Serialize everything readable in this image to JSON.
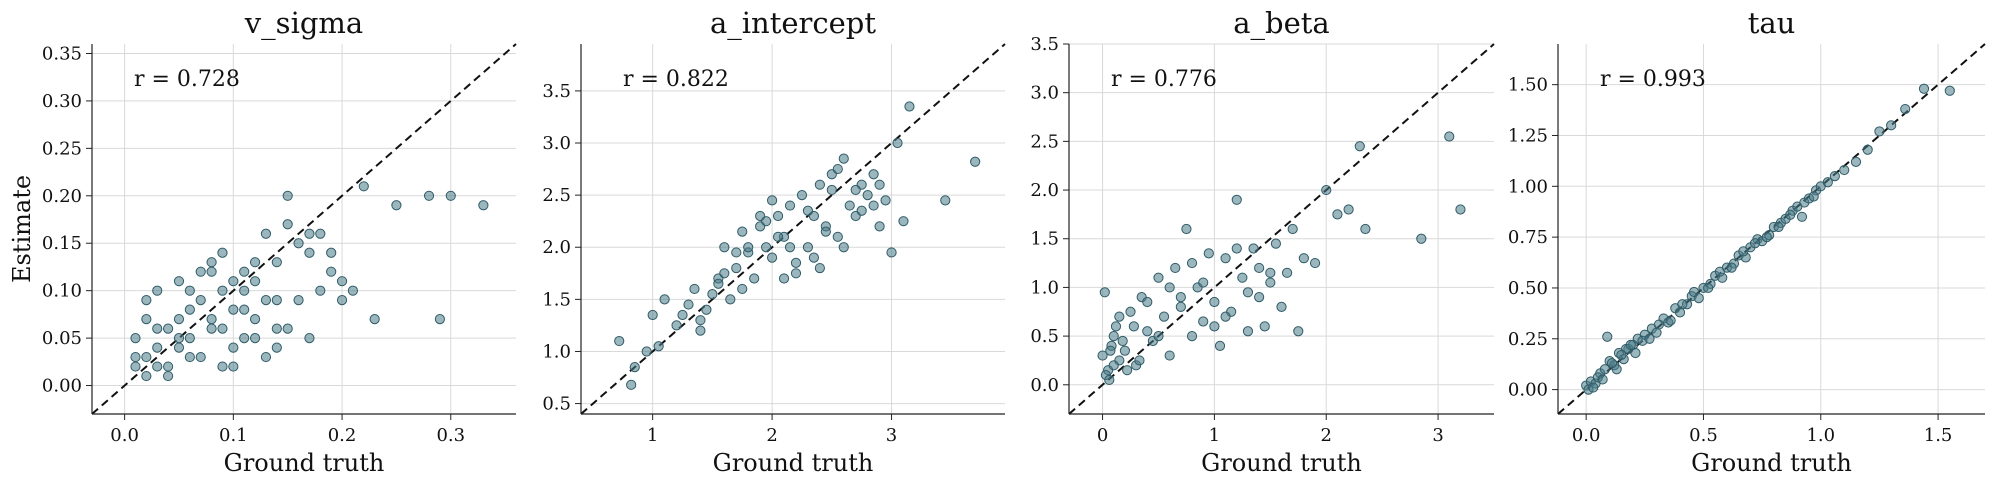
{
  "colors": {
    "point": "#4a7a87",
    "point_edge": "#2f5c68"
  },
  "chart_data": [
    {
      "type": "scatter",
      "title": "v_sigma",
      "xlabel": "Ground truth",
      "ylabel": "Estimate",
      "annotation": "r = 0.728",
      "xlim": [
        -0.03,
        0.36
      ],
      "ylim": [
        -0.03,
        0.36
      ],
      "xticks": [
        0.0,
        0.1,
        0.2,
        0.3
      ],
      "xtick_labels": [
        "0.0",
        "0.1",
        "0.2",
        "0.3"
      ],
      "yticks": [
        0.0,
        0.05,
        0.1,
        0.15,
        0.2,
        0.25,
        0.3,
        0.35
      ],
      "ytick_labels": [
        "0.00",
        "0.05",
        "0.10",
        "0.15",
        "0.20",
        "0.25",
        "0.30",
        "0.35"
      ],
      "grid": true,
      "identity_line": true,
      "x": [
        0.02,
        0.03,
        0.01,
        0.05,
        0.04,
        0.06,
        0.03,
        0.08,
        0.02,
        0.07,
        0.1,
        0.12,
        0.09,
        0.11,
        0.13,
        0.06,
        0.05,
        0.15,
        0.14,
        0.08,
        0.1,
        0.12,
        0.17,
        0.16,
        0.19,
        0.18,
        0.22,
        0.25,
        0.28,
        0.3,
        0.33,
        0.29,
        0.23,
        0.2,
        0.14,
        0.11,
        0.09,
        0.04,
        0.03,
        0.01,
        0.02,
        0.06,
        0.07,
        0.05,
        0.08,
        0.13,
        0.15,
        0.12,
        0.1,
        0.17,
        0.19,
        0.21,
        0.16,
        0.11,
        0.07,
        0.09,
        0.04,
        0.03,
        0.02,
        0.01,
        0.05,
        0.06,
        0.08,
        0.1,
        0.12,
        0.14,
        0.13,
        0.11,
        0.09,
        0.18,
        0.2,
        0.15,
        0.17,
        0.14
      ],
      "y": [
        0.03,
        0.02,
        0.05,
        0.04,
        0.06,
        0.08,
        0.1,
        0.07,
        0.09,
        0.12,
        0.11,
        0.13,
        0.14,
        0.1,
        0.16,
        0.03,
        0.05,
        0.2,
        0.09,
        0.06,
        0.02,
        0.05,
        0.14,
        0.15,
        0.12,
        0.1,
        0.21,
        0.19,
        0.2,
        0.2,
        0.19,
        0.07,
        0.07,
        0.11,
        0.04,
        0.08,
        0.1,
        0.01,
        0.04,
        0.02,
        0.07,
        0.05,
        0.09,
        0.11,
        0.12,
        0.09,
        0.17,
        0.07,
        0.04,
        0.16,
        0.14,
        0.1,
        0.09,
        0.05,
        0.03,
        0.06,
        0.02,
        0.06,
        0.01,
        0.03,
        0.07,
        0.1,
        0.13,
        0.08,
        0.11,
        0.13,
        0.03,
        0.12,
        0.02,
        0.16,
        0.09,
        0.06,
        0.05,
        0.06
      ]
    },
    {
      "type": "scatter",
      "title": "a_intercept",
      "xlabel": "Ground truth",
      "ylabel": "",
      "annotation": "r = 0.822",
      "xlim": [
        0.4,
        3.95
      ],
      "ylim": [
        0.4,
        3.95
      ],
      "xticks": [
        1,
        2,
        3
      ],
      "xtick_labels": [
        "1",
        "2",
        "3"
      ],
      "yticks": [
        0.5,
        1.0,
        1.5,
        2.0,
        2.5,
        3.0,
        3.5
      ],
      "ytick_labels": [
        "0.5",
        "1.0",
        "1.5",
        "2.0",
        "2.5",
        "3.0",
        "3.5"
      ],
      "grid": true,
      "identity_line": true,
      "x": [
        0.72,
        0.82,
        0.85,
        0.95,
        1.0,
        1.05,
        1.1,
        1.2,
        1.3,
        1.35,
        1.4,
        1.5,
        1.55,
        1.6,
        1.65,
        1.7,
        1.75,
        1.8,
        1.85,
        1.9,
        1.95,
        2.0,
        2.05,
        2.1,
        2.15,
        2.2,
        2.25,
        2.3,
        2.35,
        2.4,
        2.45,
        2.5,
        2.55,
        2.6,
        2.65,
        2.7,
        2.75,
        2.8,
        2.85,
        2.9,
        2.95,
        3.0,
        3.05,
        3.1,
        3.15,
        3.45,
        3.7,
        1.45,
        1.6,
        1.75,
        1.9,
        2.05,
        2.2,
        2.35,
        2.5,
        2.6,
        1.8,
        1.95,
        2.1,
        2.3,
        2.45,
        2.7,
        2.85,
        1.55,
        1.7,
        2.0,
        2.15,
        2.4,
        2.55,
        1.25,
        1.4,
        2.75,
        2.9
      ],
      "y": [
        1.1,
        0.68,
        0.85,
        1.0,
        1.35,
        1.05,
        1.5,
        1.25,
        1.45,
        1.6,
        1.3,
        1.55,
        1.7,
        2.0,
        1.5,
        1.8,
        2.15,
        1.95,
        1.7,
        2.2,
        2.0,
        1.9,
        2.3,
        2.1,
        2.4,
        1.75,
        2.5,
        2.0,
        2.3,
        2.6,
        2.2,
        2.7,
        2.1,
        2.85,
        2.4,
        2.3,
        2.6,
        2.5,
        2.7,
        2.2,
        2.45,
        1.95,
        3.0,
        2.25,
        3.35,
        2.45,
        2.82,
        1.4,
        1.75,
        1.6,
        2.3,
        2.1,
        1.85,
        1.9,
        2.55,
        2.0,
        2.0,
        2.25,
        1.7,
        2.35,
        2.15,
        2.55,
        2.4,
        1.65,
        1.95,
        2.45,
        2.0,
        1.8,
        2.75,
        1.35,
        1.2,
        2.35,
        2.6
      ]
    },
    {
      "type": "scatter",
      "title": "a_beta",
      "xlabel": "Ground truth",
      "ylabel": "",
      "annotation": "r = 0.776",
      "xlim": [
        -0.3,
        3.5
      ],
      "ylim": [
        -0.3,
        3.5
      ],
      "xticks": [
        0,
        1,
        2,
        3
      ],
      "xtick_labels": [
        "0",
        "1",
        "2",
        "3"
      ],
      "yticks": [
        0.0,
        0.5,
        1.0,
        1.5,
        2.0,
        2.5,
        3.0,
        3.5
      ],
      "ytick_labels": [
        "0.0",
        "0.5",
        "1.0",
        "1.5",
        "2.0",
        "2.5",
        "3.0",
        "3.5"
      ],
      "grid": true,
      "identity_line": true,
      "x": [
        0.0,
        0.05,
        0.1,
        0.15,
        0.02,
        0.08,
        0.12,
        0.2,
        0.25,
        0.3,
        0.35,
        0.4,
        0.45,
        0.5,
        0.55,
        0.6,
        0.65,
        0.7,
        0.75,
        0.8,
        0.85,
        0.9,
        0.95,
        1.0,
        1.05,
        1.1,
        1.15,
        1.2,
        1.25,
        1.3,
        1.35,
        1.4,
        1.45,
        1.5,
        1.55,
        1.6,
        1.7,
        1.8,
        1.9,
        2.0,
        2.1,
        2.2,
        2.3,
        2.35,
        2.85,
        3.1,
        3.2,
        0.03,
        0.06,
        0.1,
        0.18,
        0.22,
        0.28,
        0.5,
        0.7,
        0.9,
        1.1,
        1.3,
        1.5,
        0.4,
        0.6,
        0.8,
        1.0,
        1.2,
        1.4,
        1.65,
        1.75,
        0.15,
        0.33,
        0.07
      ],
      "y": [
        0.3,
        0.15,
        0.5,
        0.25,
        0.95,
        0.4,
        0.6,
        0.35,
        0.75,
        0.2,
        0.9,
        0.55,
        0.45,
        1.1,
        0.7,
        0.3,
        1.2,
        0.8,
        1.6,
        0.5,
        1.0,
        0.65,
        1.35,
        0.85,
        0.4,
        1.3,
        0.75,
        1.9,
        1.1,
        0.95,
        1.4,
        1.2,
        0.6,
        1.05,
        1.45,
        0.8,
        1.6,
        1.3,
        1.25,
        2.0,
        1.75,
        1.8,
        2.45,
        1.6,
        1.5,
        2.55,
        1.8,
        0.1,
        0.05,
        0.2,
        0.45,
        0.15,
        0.6,
        0.5,
        0.9,
        1.05,
        0.7,
        0.55,
        1.15,
        0.85,
        1.0,
        1.25,
        0.6,
        1.4,
        0.9,
        1.15,
        0.55,
        0.7,
        0.25,
        0.35
      ]
    },
    {
      "type": "scatter",
      "title": "tau",
      "xlabel": "Ground truth",
      "ylabel": "",
      "annotation": "r = 0.993",
      "xlim": [
        -0.12,
        1.7
      ],
      "ylim": [
        -0.12,
        1.7
      ],
      "xticks": [
        0.0,
        0.5,
        1.0,
        1.5
      ],
      "xtick_labels": [
        "0.0",
        "0.5",
        "1.0",
        "1.5"
      ],
      "yticks": [
        0.0,
        0.25,
        0.5,
        0.75,
        1.0,
        1.25,
        1.5
      ],
      "ytick_labels": [
        "0.00",
        "0.25",
        "0.50",
        "0.75",
        "1.00",
        "1.25",
        "1.50"
      ],
      "grid": true,
      "identity_line": true,
      "x": [
        0.0,
        0.02,
        0.04,
        0.06,
        0.08,
        0.1,
        0.12,
        0.14,
        0.16,
        0.18,
        0.2,
        0.22,
        0.25,
        0.28,
        0.3,
        0.33,
        0.35,
        0.38,
        0.4,
        0.43,
        0.45,
        0.48,
        0.5,
        0.53,
        0.55,
        0.58,
        0.6,
        0.63,
        0.65,
        0.68,
        0.7,
        0.73,
        0.75,
        0.78,
        0.8,
        0.83,
        0.85,
        0.88,
        0.9,
        0.93,
        0.95,
        0.98,
        1.0,
        1.03,
        1.06,
        1.1,
        1.15,
        1.2,
        1.25,
        1.3,
        1.36,
        1.44,
        1.55,
        0.05,
        0.09,
        0.13,
        0.17,
        0.21,
        0.24,
        0.27,
        0.31,
        0.36,
        0.41,
        0.46,
        0.52,
        0.57,
        0.62,
        0.67,
        0.72,
        0.77,
        0.82,
        0.87,
        0.92,
        0.97,
        0.01,
        0.03,
        0.07,
        0.11,
        0.15,
        0.19
      ],
      "y": [
        0.02,
        0.04,
        0.03,
        0.08,
        0.1,
        0.14,
        0.12,
        0.18,
        0.15,
        0.2,
        0.22,
        0.25,
        0.27,
        0.3,
        0.28,
        0.35,
        0.33,
        0.4,
        0.38,
        0.42,
        0.46,
        0.45,
        0.5,
        0.52,
        0.56,
        0.55,
        0.6,
        0.62,
        0.66,
        0.65,
        0.7,
        0.74,
        0.73,
        0.76,
        0.8,
        0.82,
        0.84,
        0.88,
        0.9,
        0.92,
        0.94,
        0.98,
        1.0,
        1.02,
        1.05,
        1.08,
        1.12,
        1.18,
        1.27,
        1.3,
        1.38,
        1.48,
        1.47,
        0.06,
        0.26,
        0.1,
        0.2,
        0.18,
        0.24,
        0.25,
        0.32,
        0.34,
        0.42,
        0.48,
        0.5,
        0.58,
        0.6,
        0.68,
        0.72,
        0.75,
        0.8,
        0.86,
        0.85,
        0.95,
        0.0,
        0.01,
        0.05,
        0.13,
        0.17,
        0.22
      ]
    }
  ]
}
